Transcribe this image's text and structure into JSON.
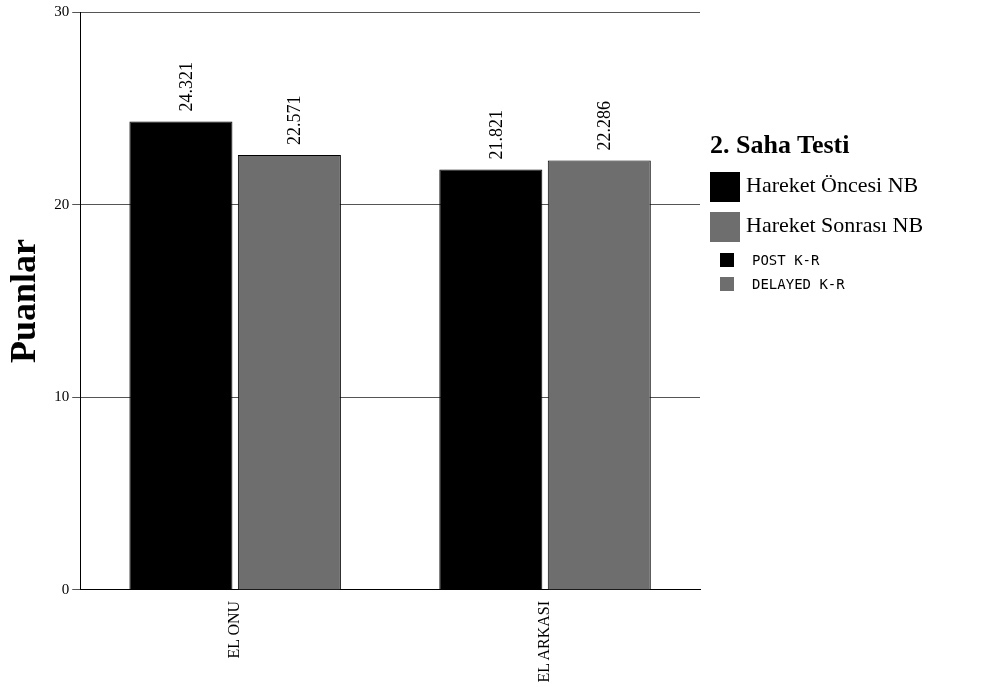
{
  "chart_data": {
    "type": "bar",
    "ylabel": "Puanlar",
    "legend_title": "2. Saha Testi",
    "categories": [
      "EL ONU",
      "EL ARKASI"
    ],
    "series": [
      {
        "name": "Hareket Öncesi NB",
        "color": "#000000",
        "values": [
          24.321,
          21.821
        ]
      },
      {
        "name": "Hareket Sonrası NB",
        "color": "#6e6e6e",
        "values": [
          22.571,
          22.286
        ]
      }
    ],
    "ylim": [
      0,
      30
    ],
    "yticks": [
      0,
      10,
      20,
      30
    ],
    "grid": "y",
    "legend": "right",
    "data_labels": true,
    "annotations": [
      "POST K-R",
      "DELAYED K-R"
    ]
  }
}
